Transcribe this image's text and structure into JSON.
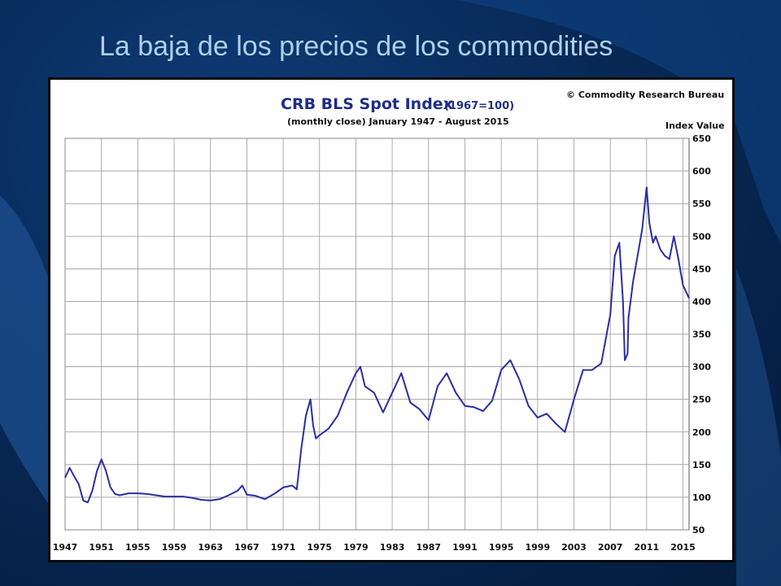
{
  "slide": {
    "title": "La baja de los precios de los commodities"
  },
  "colors": {
    "line": "#2b2ea0",
    "title_blue": "#1e2e86",
    "background": "#082a58",
    "grid": "#999999"
  },
  "chart_data": {
    "type": "line",
    "title_main": "CRB BLS Spot Index",
    "title_suffix": "(1967=100)",
    "subtitle": "(monthly close) January 1947 - August 2015",
    "source": "© Commodity Research Bureau",
    "ylabel": "Index Value",
    "xlim": [
      1947,
      2015.67
    ],
    "ylim": [
      50,
      650
    ],
    "x_ticks": [
      "1947",
      "1951",
      "1955",
      "1959",
      "1963",
      "1967",
      "1971",
      "1975",
      "1979",
      "1983",
      "1987",
      "1991",
      "1995",
      "1999",
      "2003",
      "2007",
      "2011",
      "2015"
    ],
    "y_ticks": [
      "650",
      "600",
      "550",
      "500",
      "450",
      "400",
      "350",
      "300",
      "250",
      "200",
      "150",
      "100",
      "50"
    ],
    "grid": true,
    "series": [
      {
        "x": [
          1947,
          1947.5,
          1948,
          1948.5,
          1949,
          1949.5,
          1950,
          1950.5,
          1951,
          1951.5,
          1952,
          1952.5,
          1953,
          1954,
          1955,
          1956,
          1957,
          1958,
          1959,
          1960,
          1961,
          1962,
          1963,
          1964,
          1965,
          1966,
          1966.5,
          1967,
          1968,
          1969,
          1970,
          1971,
          1972,
          1972.5,
          1973,
          1973.5,
          1974,
          1974.3,
          1974.6,
          1975,
          1976,
          1977,
          1978,
          1979,
          1979.5,
          1980,
          1981,
          1982,
          1983,
          1984,
          1985,
          1986,
          1987,
          1988,
          1989,
          1990,
          1991,
          1992,
          1993,
          1994,
          1995,
          1996,
          1997,
          1998,
          1999,
          2000,
          2001,
          2002,
          2003,
          2004,
          2005,
          2006,
          2007,
          2007.5,
          2008,
          2008.4,
          2008.6,
          2008.9,
          2009,
          2009.5,
          2010,
          2010.5,
          2011,
          2011.3,
          2011.7,
          2012,
          2012.5,
          2013,
          2013.5,
          2014,
          2014.5,
          2015,
          2015.67
        ],
        "y": [
          130,
          145,
          132,
          120,
          95,
          92,
          110,
          140,
          158,
          140,
          115,
          105,
          103,
          106,
          106,
          105,
          103,
          101,
          101,
          101,
          99,
          96,
          95,
          97,
          103,
          110,
          118,
          104,
          102,
          97,
          105,
          115,
          118,
          112,
          175,
          225,
          250,
          210,
          190,
          195,
          205,
          225,
          260,
          290,
          300,
          270,
          260,
          230,
          260,
          290,
          245,
          235,
          218,
          270,
          290,
          260,
          240,
          238,
          232,
          248,
          295,
          310,
          280,
          240,
          222,
          228,
          213,
          200,
          250,
          295,
          295,
          305,
          380,
          470,
          490,
          400,
          310,
          320,
          375,
          430,
          470,
          510,
          575,
          520,
          490,
          500,
          480,
          470,
          465,
          500,
          465,
          425,
          405
        ]
      }
    ]
  }
}
